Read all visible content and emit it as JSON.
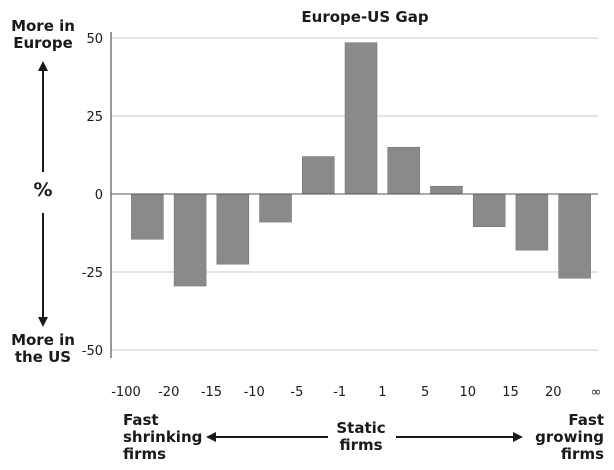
{
  "chart_data": {
    "type": "bar",
    "title": "Europe-US Gap",
    "ylim": [
      -50,
      50
    ],
    "yticks": [
      50,
      25,
      0,
      -25,
      -50
    ],
    "xticks": [
      "-100",
      "-20",
      "-15",
      "-10",
      "-5",
      "-1",
      "1",
      "5",
      "10",
      "15",
      "20",
      "∞"
    ],
    "values": [
      -14.5,
      -29.5,
      -22.5,
      -9,
      12,
      48.5,
      15,
      2.5,
      -10.5,
      -18,
      -27
    ],
    "grid": true,
    "bar_color": "#8a8a8a"
  },
  "y_annotations": {
    "top": [
      "More in",
      "Europe"
    ],
    "middle": "%",
    "bottom": [
      "More in",
      "the US"
    ]
  },
  "x_annotations": {
    "left": [
      "Fast",
      "shrinking",
      "firms"
    ],
    "center": [
      "Static",
      "firms"
    ],
    "right": [
      "Fast",
      "growing",
      "firms"
    ]
  }
}
